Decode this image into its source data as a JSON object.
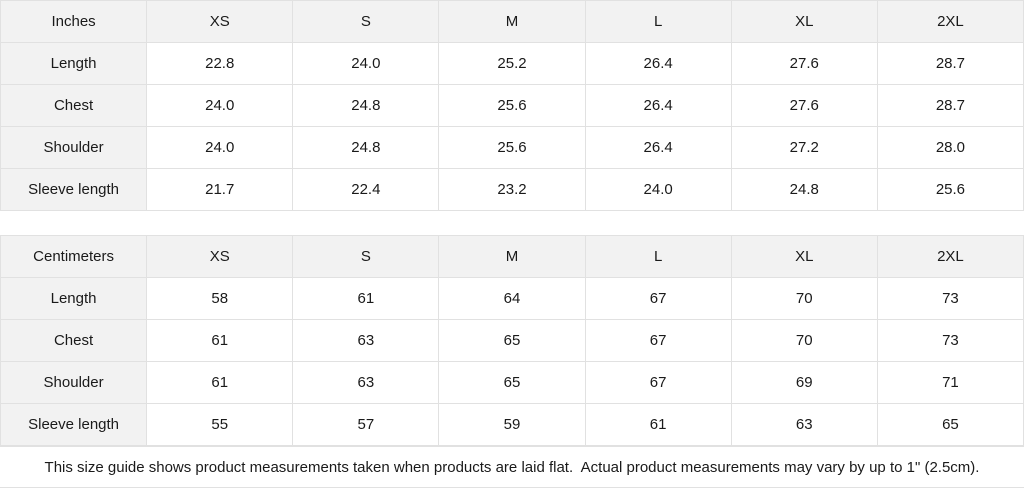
{
  "colors": {
    "header_background": "#f2f2f2",
    "cell_background": "#ffffff",
    "border": "#e1e1e1",
    "text": "#1a1a1a"
  },
  "tables": [
    {
      "unit_label": "Inches",
      "sizes": [
        "XS",
        "S",
        "M",
        "L",
        "XL",
        "2XL"
      ],
      "rows": [
        {
          "label": "Length",
          "values": [
            "22.8",
            "24.0",
            "25.2",
            "26.4",
            "27.6",
            "28.7"
          ]
        },
        {
          "label": "Chest",
          "values": [
            "24.0",
            "24.8",
            "25.6",
            "26.4",
            "27.6",
            "28.7"
          ]
        },
        {
          "label": "Shoulder",
          "values": [
            "24.0",
            "24.8",
            "25.6",
            "26.4",
            "27.2",
            "28.0"
          ]
        },
        {
          "label": "Sleeve length",
          "values": [
            "21.7",
            "22.4",
            "23.2",
            "24.0",
            "24.8",
            "25.6"
          ]
        }
      ]
    },
    {
      "unit_label": "Centimeters",
      "sizes": [
        "XS",
        "S",
        "M",
        "L",
        "XL",
        "2XL"
      ],
      "rows": [
        {
          "label": "Length",
          "values": [
            "58",
            "61",
            "64",
            "67",
            "70",
            "73"
          ]
        },
        {
          "label": "Chest",
          "values": [
            "61",
            "63",
            "65",
            "67",
            "70",
            "73"
          ]
        },
        {
          "label": "Shoulder",
          "values": [
            "61",
            "63",
            "65",
            "67",
            "69",
            "71"
          ]
        },
        {
          "label": "Sleeve length",
          "values": [
            "55",
            "57",
            "59",
            "61",
            "63",
            "65"
          ]
        }
      ]
    }
  ],
  "footer": {
    "note": "This size guide shows product measurements taken when products are laid flat.  Actual product measurements may vary by up to 1\" (2.5cm)."
  }
}
